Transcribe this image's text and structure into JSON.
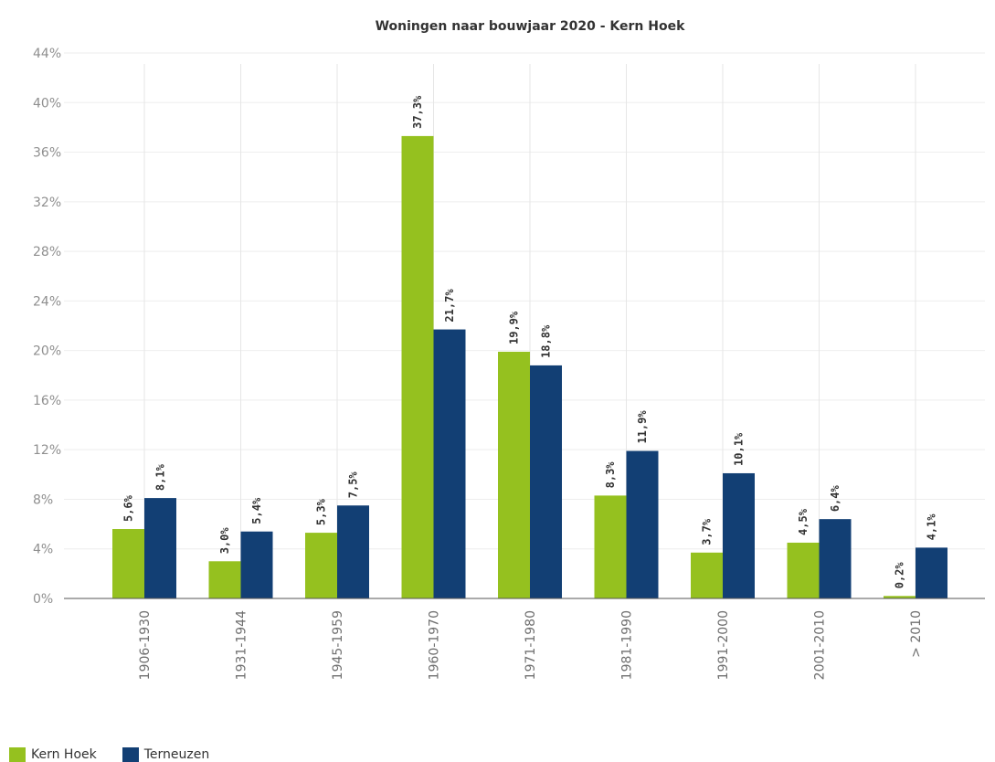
{
  "chart_data": {
    "type": "bar",
    "title": "Woningen naar bouwjaar 2020 - Kern Hoek",
    "xlabel": "",
    "ylabel": "",
    "ylim": [
      0,
      44
    ],
    "yticks": [
      "0%",
      "4%",
      "8%",
      "12%",
      "16%",
      "20%",
      "24%",
      "28%",
      "32%",
      "36%",
      "40%",
      "44%"
    ],
    "categories": [
      "1906-1930",
      "1931-1944",
      "1945-1959",
      "1960-1970",
      "1971-1980",
      "1981-1990",
      "1991-2000",
      "2001-2010",
      "> 2010"
    ],
    "series": [
      {
        "name": "Kern Hoek",
        "color": "#95c11f",
        "values": [
          5.6,
          3.0,
          5.3,
          37.3,
          19.9,
          8.3,
          3.7,
          4.5,
          0.2
        ],
        "labels": [
          "5,6%",
          "3,0%",
          "5,3%",
          "37,3%",
          "19,9%",
          "8,3%",
          "3,7%",
          "4,5%",
          "0,2%"
        ]
      },
      {
        "name": "Terneuzen",
        "color": "#123f74",
        "values": [
          8.1,
          5.4,
          7.5,
          21.7,
          18.8,
          11.9,
          10.1,
          6.4,
          4.1
        ],
        "labels": [
          "8,1%",
          "5,4%",
          "7,5%",
          "21,7%",
          "18,8%",
          "11,9%",
          "10,1%",
          "6,4%",
          "4,1%"
        ]
      }
    ],
    "grid": true,
    "legend_position": "bottom-left"
  }
}
